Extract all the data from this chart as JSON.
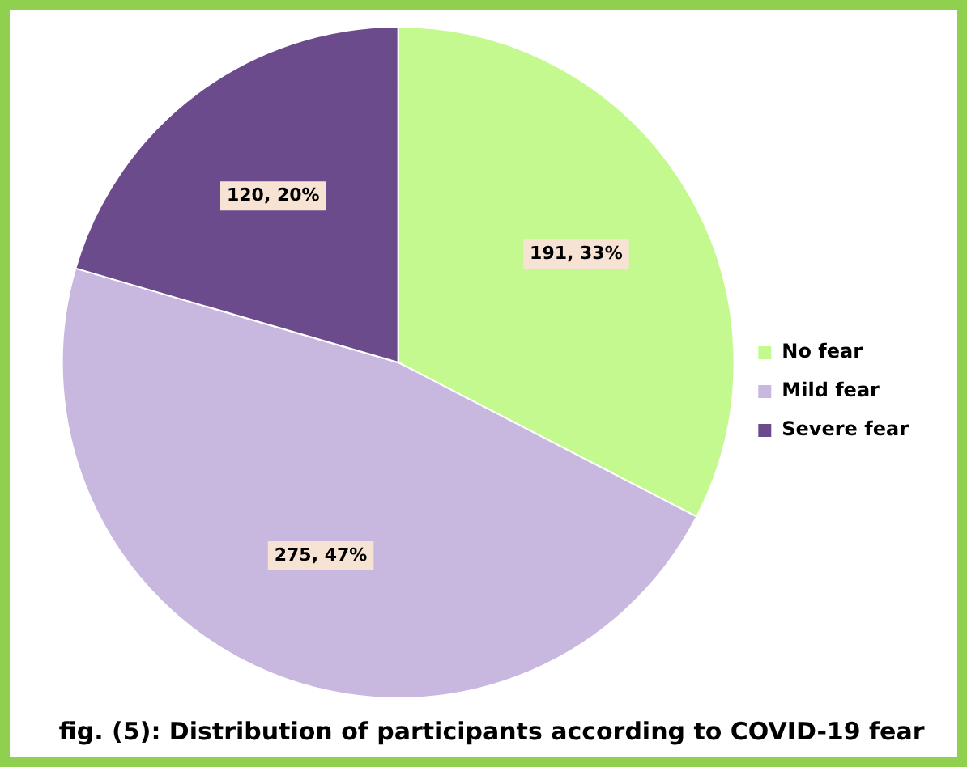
{
  "chart_data": {
    "type": "pie",
    "title": "fig. (5): Distribution of participants according to COVID-19 fear",
    "categories": [
      "No fear",
      "Mild fear",
      "Severe fear"
    ],
    "values": [
      191,
      275,
      120
    ],
    "value_labels": [
      "191, 33%",
      "275, 47%",
      "120, 20%"
    ],
    "colors": [
      "#c4f98f",
      "#c8b7de",
      "#6b4b8c"
    ],
    "legend": "right"
  }
}
